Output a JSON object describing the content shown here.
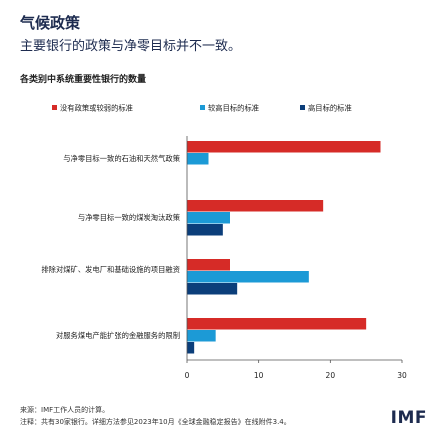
{
  "title": "气候政策",
  "subtitle": "主要银行的政策与净零目标并不一致。",
  "notes": {
    "source": "来源：IMF工作人员的计算。",
    "note": "注释：共有30家银行。详细方法参见2023年10月《全球金融稳定报告》在线附件3.4。"
  },
  "logo": "IMF",
  "colors": {
    "none": "#d62b27",
    "medium": "#1c9ad6",
    "high": "#0b3e7a"
  },
  "chart_data": {
    "type": "bar",
    "orientation": "horizontal",
    "title": "各类别中系统重要性银行的数量",
    "categories": [
      "与净零目标一致的石油和天然气政策",
      "与净零目标一致的煤炭淘汰政策",
      "排除对煤矿、发电厂和基础设施的项目融资",
      "对服务煤电产能扩张的金融服务的限制"
    ],
    "series": [
      {
        "name": "没有政策或较弱的标准",
        "values": [
          27,
          19,
          6,
          25
        ]
      },
      {
        "name": "较高目标的标准",
        "values": [
          3,
          6,
          17,
          4
        ]
      },
      {
        "name": "高目标的标准",
        "values": [
          0,
          5,
          7,
          1
        ]
      }
    ],
    "xlim": [
      0,
      30
    ],
    "xticks": [
      0,
      10,
      20,
      30
    ],
    "legend": "top",
    "grid": false
  }
}
